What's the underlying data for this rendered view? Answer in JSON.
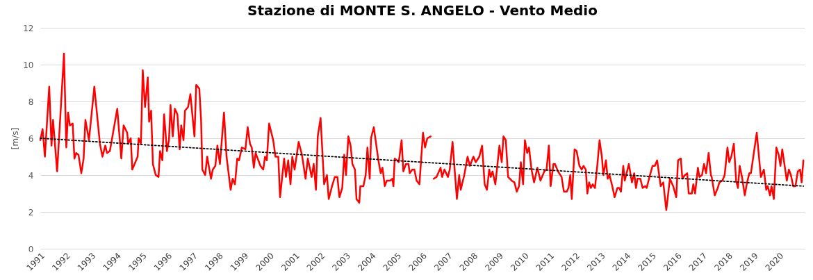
{
  "chart_data": {
    "type": "line",
    "title": "Stazione di MONTE S. ANGELO - Vento Medio",
    "ylabel": "[m/s]",
    "xlim": [
      1991,
      2021
    ],
    "xticks": [
      1991,
      1992,
      1993,
      1994,
      1995,
      1996,
      1997,
      1998,
      1999,
      2000,
      2001,
      2002,
      2003,
      2004,
      2005,
      2006,
      2007,
      2008,
      2009,
      2010,
      2011,
      2012,
      2013,
      2014,
      2015,
      2016,
      2017,
      2018,
      2019,
      2020
    ],
    "ylim": [
      0,
      12
    ],
    "yticks": [
      0,
      2,
      4,
      6,
      8,
      10,
      12
    ],
    "grid": "y",
    "series": [
      {
        "color": "#ff0000",
        "x": [
          1991.0,
          1991.09,
          1991.18,
          1991.35,
          1991.44,
          1991.5,
          1991.66,
          1991.93,
          1992.02,
          1992.09,
          1992.16,
          1992.27,
          1992.34,
          1992.41,
          1992.5,
          1992.61,
          1992.7,
          1992.77,
          1992.91,
          1993.12,
          1993.34,
          1993.44,
          1993.55,
          1993.62,
          1993.73,
          1994.02,
          1994.18,
          1994.27,
          1994.41,
          1994.45,
          1994.55,
          1994.61,
          1994.82,
          1994.86,
          1994.95,
          1995.02,
          1995.11,
          1995.22,
          1995.27,
          1995.35,
          1995.42,
          1995.53,
          1995.64,
          1995.7,
          1995.79,
          1995.86,
          1995.97,
          1996.05,
          1996.11,
          1996.2,
          1996.28,
          1996.38,
          1996.47,
          1996.53,
          1996.62,
          1996.68,
          1996.8,
          1996.89,
          1997.05,
          1997.12,
          1997.24,
          1997.31,
          1997.36,
          1997.47,
          1997.55,
          1997.7,
          1997.77,
          1997.87,
          1997.95,
          1998.05,
          1998.21,
          1998.31,
          1998.47,
          1998.55,
          1998.64,
          1998.73,
          1998.8,
          1998.91,
          1999.05,
          1999.14,
          1999.23,
          1999.3,
          1999.38,
          1999.45,
          1999.64,
          1999.75,
          1999.82,
          1999.89,
          1999.98,
          2000.14,
          2000.23,
          2000.34,
          2000.41,
          2000.57,
          2000.64,
          2000.73,
          2000.82,
          2000.89,
          2000.98,
          2001.14,
          2001.27,
          2001.41,
          2001.5,
          2001.65,
          2001.73,
          2001.82,
          2001.89,
          2002.0,
          2002.14,
          2002.25,
          2002.32,
          2002.45,
          2002.56,
          2002.66,
          2002.74,
          2002.85,
          2002.93,
          2003.0,
          2003.09,
          2003.18,
          2003.25,
          2003.35,
          2003.41,
          2003.52,
          2003.56,
          2003.68,
          2003.77,
          2003.84,
          2003.93,
          2003.98,
          2004.09,
          2004.27,
          2004.36,
          2004.43,
          2004.52,
          2004.6,
          2004.73,
          2004.82,
          2004.86,
          2004.91,
          2005.0,
          2005.07,
          2005.18,
          2005.25,
          2005.35,
          2005.45,
          2005.5,
          2005.6,
          2005.68,
          2005.77,
          2005.88,
          2006.02,
          2006.1,
          2006.19,
          2006.32,
          2006.38,
          2006.44,
          2006.55,
          2006.71,
          2006.77,
          2006.86,
          2007.0,
          2007.07,
          2007.18,
          2007.35,
          2007.44,
          2007.5,
          2007.64,
          2007.77,
          2007.86,
          2008.0,
          2008.09,
          2008.23,
          2008.34,
          2008.44,
          2008.53,
          2008.62,
          2008.68,
          2008.75,
          2008.86,
          2009.02,
          2009.11,
          2009.18,
          2009.27,
          2009.36,
          2009.5,
          2009.61,
          2009.7,
          2009.79,
          2009.86,
          2009.95,
          2010.02,
          2010.11,
          2010.18,
          2010.28,
          2010.38,
          2010.51,
          2010.63,
          2010.78,
          2010.87,
          2010.96,
          2011.03,
          2011.14,
          2011.2,
          2011.32,
          2011.46,
          2011.55,
          2011.66,
          2011.73,
          2011.8,
          2011.86,
          2011.97,
          2012.05,
          2012.16,
          2012.25,
          2012.32,
          2012.41,
          2012.47,
          2012.54,
          2012.61,
          2012.68,
          2012.77,
          2012.86,
          2012.95,
          2013.04,
          2013.1,
          2013.2,
          2013.27,
          2013.34,
          2013.45,
          2013.54,
          2013.65,
          2013.72,
          2013.79,
          2013.88,
          2013.94,
          2014.1,
          2014.22,
          2014.31,
          2014.38,
          2014.44,
          2014.55,
          2014.64,
          2014.74,
          2014.8,
          2014.91,
          2015.03,
          2015.12,
          2015.21,
          2015.35,
          2015.45,
          2015.57,
          2015.71,
          2015.84,
          2015.96,
          2016.03,
          2016.14,
          2016.2,
          2016.3,
          2016.39,
          2016.45,
          2016.57,
          2016.63,
          2016.7,
          2016.81,
          2016.87,
          2016.97,
          2017.05,
          2017.13,
          2017.23,
          2017.32,
          2017.35,
          2017.47,
          2017.59,
          2017.65,
          2017.77,
          2017.86,
          2017.97,
          2018.04,
          2018.12,
          2018.22,
          2018.31,
          2018.38,
          2018.45,
          2018.54,
          2018.65,
          2018.74,
          2018.83,
          2018.89,
          2019.12,
          2019.28,
          2019.4,
          2019.49,
          2019.55,
          2019.64,
          2019.7,
          2019.79,
          2019.89,
          2019.98,
          2020.05,
          2020.12,
          2020.3,
          2020.38,
          2020.46,
          2020.55,
          2020.64,
          2020.73,
          2020.82,
          2020.88,
          2020.95
        ],
        "values": [
          5.9,
          6.5,
          5.0,
          8.8,
          5.6,
          7.0,
          4.2,
          10.6,
          5.5,
          7.4,
          6.7,
          6.8,
          4.9,
          5.2,
          5.1,
          4.1,
          4.9,
          7.0,
          5.9,
          8.8,
          5.7,
          5.0,
          5.6,
          5.2,
          5.3,
          7.6,
          4.9,
          6.7,
          6.3,
          5.7,
          6.0,
          4.3,
          5.0,
          6.0,
          5.7,
          9.7,
          7.7,
          9.3,
          6.9,
          7.5,
          4.6,
          4.0,
          3.9,
          5.3,
          4.8,
          7.3,
          5.3,
          5.9,
          7.8,
          6.1,
          7.6,
          7.3,
          5.4,
          6.7,
          5.9,
          7.5,
          7.7,
          8.4,
          6.1,
          8.9,
          8.7,
          7.0,
          4.3,
          4.0,
          5.0,
          3.8,
          4.3,
          4.5,
          5.6,
          4.6,
          7.4,
          5.0,
          3.2,
          3.8,
          3.5,
          4.9,
          4.8,
          5.5,
          5.4,
          6.6,
          5.7,
          5.5,
          4.4,
          5.2,
          4.5,
          4.3,
          5.0,
          4.8,
          6.8,
          5.9,
          5.0,
          5.0,
          2.8,
          4.9,
          3.9,
          4.8,
          3.5,
          5.0,
          4.3,
          5.8,
          5.1,
          3.8,
          4.9,
          3.9,
          4.6,
          3.2,
          6.1,
          7.1,
          3.5,
          4.0,
          2.7,
          3.4,
          3.9,
          3.9,
          2.8,
          3.3,
          5.1,
          4.0,
          6.1,
          5.6,
          4.6,
          4.3,
          2.7,
          2.5,
          3.4,
          3.4,
          4.0,
          5.5,
          3.8,
          6.0,
          6.6,
          4.8,
          4.1,
          4.4,
          3.4,
          3.7,
          3.7,
          3.8,
          3.4,
          4.9,
          4.8,
          4.7,
          5.9,
          4.2,
          4.6,
          4.6,
          4.1,
          4.3,
          4.3,
          3.7,
          3.5,
          6.3,
          5.5,
          6.0,
          6.1,
          null,
          3.8,
          3.9,
          4.4,
          3.9,
          4.3,
          3.9,
          4.3,
          5.8,
          2.7,
          4.0,
          3.2,
          4.0,
          5.0,
          4.5,
          5.0,
          4.7,
          5.0,
          5.6,
          3.5,
          3.2,
          4.3,
          3.9,
          4.2,
          3.5,
          5.6,
          4.7,
          6.1,
          5.9,
          3.9,
          3.7,
          3.6,
          3.1,
          3.4,
          4.7,
          3.5,
          5.9,
          5.2,
          5.5,
          4.3,
          3.6,
          4.4,
          3.7,
          4.2,
          4.3,
          5.6,
          3.4,
          4.6,
          4.6,
          4.2,
          3.9,
          3.1,
          3.1,
          3.3,
          4.0,
          2.7,
          5.4,
          5.3,
          4.5,
          4.3,
          4.5,
          4.3,
          3.0,
          3.6,
          3.3,
          3.5,
          3.3,
          4.5,
          5.9,
          5.0,
          4.0,
          4.8,
          3.8,
          4.0,
          3.4,
          2.8,
          3.3,
          3.3,
          3.1,
          4.5,
          3.7,
          4.6,
          3.6,
          4.1,
          3.3,
          3.8,
          3.8,
          3.3,
          3.4,
          3.3,
          3.9,
          4.5,
          4.5,
          4.8,
          3.4,
          3.6,
          2.1,
          3.8,
          3.4,
          2.8,
          4.8,
          4.9,
          3.8,
          4.0,
          4.1,
          3.0,
          3.0,
          3.5,
          3.0,
          4.4,
          3.9,
          4.0,
          4.6,
          4.1,
          5.2,
          4.0,
          3.9,
          2.9,
          3.3,
          3.6,
          3.7,
          4.0,
          5.5,
          4.7,
          5.0,
          5.7,
          3.7,
          3.3,
          4.5,
          3.9,
          2.9,
          3.6,
          4.1,
          4.1,
          6.3,
          3.9,
          4.3,
          3.2,
          3.4,
          2.9,
          3.4,
          2.7,
          5.5,
          5.1,
          4.5,
          5.4,
          3.7,
          4.3,
          4.0,
          3.4,
          3.4,
          4.2,
          4.3,
          3.6,
          4.8
        ]
      },
      {
        "type": "line",
        "color": "#000000",
        "line_style": "dotted",
        "x": [
          1991.0,
          2020.95
        ],
        "values": [
          6.0,
          3.4
        ]
      }
    ]
  }
}
